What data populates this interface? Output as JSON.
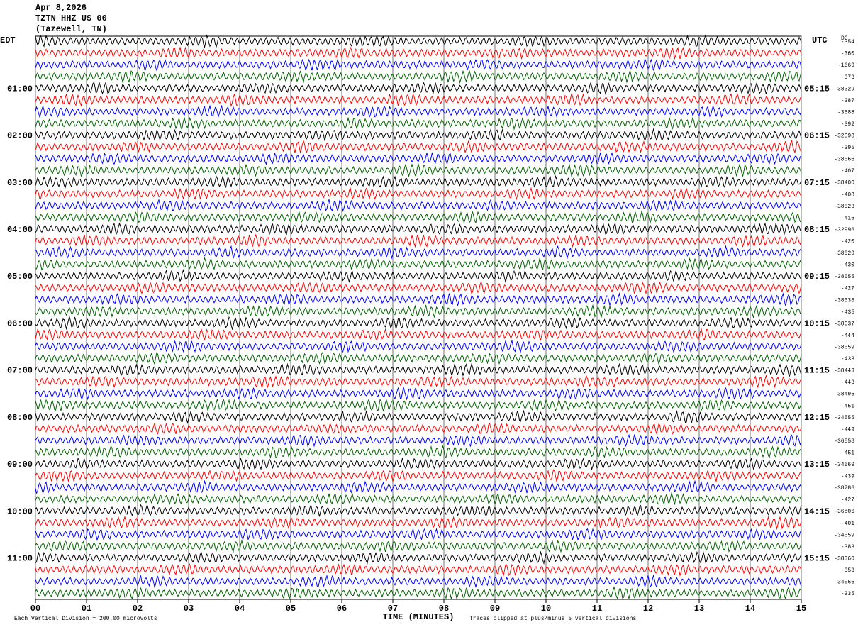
{
  "header": {
    "date": "Apr 8,2026",
    "station": "TZTN HHZ US 00",
    "location": "(Tazewell, TN)"
  },
  "chart_data": {
    "type": "helicorder",
    "left_axis_label": "EDT",
    "right_axis_label": "UTC",
    "dc_label": "DC",
    "left_labels": [
      "01:00",
      "02:00",
      "03:00",
      "04:00",
      "05:00",
      "06:00",
      "07:00",
      "08:00",
      "09:00",
      "10:00",
      "11:00"
    ],
    "right_labels": [
      "05:15",
      "06:15",
      "07:15",
      "08:15",
      "09:15",
      "10:15",
      "11:15",
      "12:15",
      "13:15",
      "14:15",
      "15:15"
    ],
    "dc_offsets": [
      "-354",
      "-360",
      "-1669",
      "-373",
      "-38329",
      "-387",
      "-3688",
      "-392",
      "-32598",
      "-395",
      "-38066",
      "-407",
      "-38400",
      "-408",
      "-38023",
      "-416",
      "-32996",
      "-420",
      "-38029",
      "-430",
      "-38055",
      "-427",
      "-38036",
      "-435",
      "-38637",
      "-444",
      "-38059",
      "-433",
      "-38443",
      "-443",
      "-38496",
      "-451",
      "-34555",
      "-449",
      "-36558",
      "-451",
      "-34669",
      "-439",
      "-38786",
      "-427",
      "-36806",
      "-401",
      "-34059",
      "-383",
      "-38360",
      "-353",
      "-34066",
      "-335"
    ],
    "trace_colors": [
      "#000000",
      "#ff0000",
      "#0000ff",
      "#006400"
    ],
    "xlim": [
      0,
      15
    ],
    "xticks": [
      {
        "value": 0,
        "label": "00"
      },
      {
        "value": 1,
        "label": "01"
      },
      {
        "value": 2,
        "label": "02"
      },
      {
        "value": 3,
        "label": "03"
      },
      {
        "value": 4,
        "label": "04"
      },
      {
        "value": 5,
        "label": "05"
      },
      {
        "value": 6,
        "label": "06"
      },
      {
        "value": 7,
        "label": "07"
      },
      {
        "value": 8,
        "label": "08"
      },
      {
        "value": 9,
        "label": "09"
      },
      10,
      11,
      12,
      13,
      14,
      15
    ],
    "xlabel": "TIME (MINUTES)",
    "grid": true
  },
  "footer": {
    "scale": "Each Vertical Division =  200.00 microvolts",
    "clip": "Traces clipped at plus/minus 5 vertical divisions"
  }
}
